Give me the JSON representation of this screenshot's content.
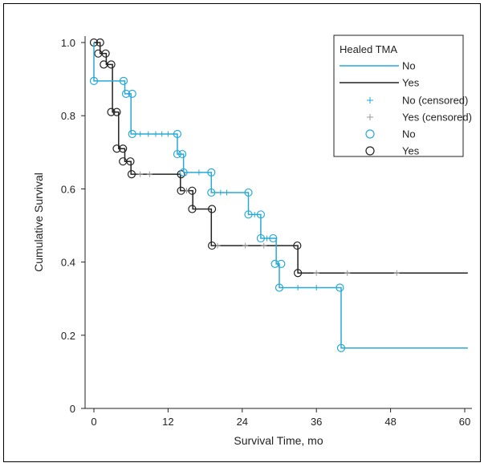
{
  "chart_data": {
    "type": "line",
    "subtype": "kaplan-meier step",
    "xlabel": "Survival Time, mo",
    "ylabel": "Cumulative Survival",
    "xlim": [
      0,
      60
    ],
    "ylim": [
      0,
      1.0
    ],
    "xticks": [
      0,
      12,
      24,
      36,
      48,
      60
    ],
    "yticks": [
      0,
      0.2,
      0.4,
      0.6,
      0.8,
      1.0
    ],
    "grid": false,
    "legend": {
      "title": "Healed TMA",
      "placement": "top-right",
      "entries": [
        {
          "label": "No",
          "kind": "line",
          "series": "No"
        },
        {
          "label": "Yes",
          "kind": "line",
          "series": "Yes"
        },
        {
          "label": "No (censored)",
          "kind": "censor",
          "series": "No"
        },
        {
          "label": "Yes (censored)",
          "kind": "censor",
          "series": "Yes"
        },
        {
          "label": "No",
          "kind": "event",
          "series": "No"
        },
        {
          "label": "Yes",
          "kind": "event",
          "series": "Yes"
        }
      ]
    },
    "series": [
      {
        "name": "No",
        "color": "#29a9d6",
        "steps": [
          [
            0,
            1.0
          ],
          [
            0,
            0.895
          ],
          [
            5,
            0.86
          ],
          [
            6,
            0.75
          ],
          [
            13.5,
            0.695
          ],
          [
            14.5,
            0.645
          ],
          [
            19,
            0.59
          ],
          [
            25,
            0.53
          ],
          [
            27,
            0.465
          ],
          [
            29.5,
            0.395
          ],
          [
            30,
            0.33
          ],
          [
            40,
            0.165
          ],
          [
            60.5,
            0.165
          ]
        ],
        "events": [
          [
            0,
            0.895
          ],
          [
            4.8,
            0.895
          ],
          [
            5.2,
            0.86
          ],
          [
            6.2,
            0.86
          ],
          [
            6.2,
            0.75
          ],
          [
            13.5,
            0.75
          ],
          [
            13.5,
            0.695
          ],
          [
            14.3,
            0.695
          ],
          [
            14.5,
            0.645
          ],
          [
            19,
            0.645
          ],
          [
            19,
            0.59
          ],
          [
            25,
            0.59
          ],
          [
            25,
            0.53
          ],
          [
            27,
            0.53
          ],
          [
            27,
            0.465
          ],
          [
            29,
            0.465
          ],
          [
            29.3,
            0.395
          ],
          [
            30.3,
            0.395
          ],
          [
            30,
            0.33
          ],
          [
            39.8,
            0.33
          ],
          [
            40,
            0.165
          ]
        ],
        "censored": [
          [
            7.5,
            0.75
          ],
          [
            8.8,
            0.75
          ],
          [
            10,
            0.75
          ],
          [
            11,
            0.75
          ],
          [
            12,
            0.75
          ],
          [
            17,
            0.645
          ],
          [
            20.5,
            0.59
          ],
          [
            21.5,
            0.59
          ],
          [
            26,
            0.53
          ],
          [
            28,
            0.465
          ],
          [
            33,
            0.33
          ],
          [
            36,
            0.33
          ]
        ]
      },
      {
        "name": "Yes",
        "color": "#222222",
        "steps": [
          [
            0,
            1.0
          ],
          [
            1,
            0.97
          ],
          [
            2,
            0.94
          ],
          [
            3,
            0.81
          ],
          [
            4,
            0.71
          ],
          [
            5,
            0.675
          ],
          [
            6,
            0.64
          ],
          [
            14,
            0.595
          ],
          [
            16,
            0.545
          ],
          [
            19,
            0.445
          ],
          [
            33,
            0.37
          ],
          [
            60.5,
            0.37
          ]
        ],
        "events": [
          [
            0,
            1.0
          ],
          [
            1,
            1.0
          ],
          [
            0.7,
            0.97
          ],
          [
            1.9,
            0.97
          ],
          [
            1.6,
            0.94
          ],
          [
            2.8,
            0.94
          ],
          [
            2.8,
            0.81
          ],
          [
            3.7,
            0.81
          ],
          [
            3.7,
            0.71
          ],
          [
            4.7,
            0.71
          ],
          [
            4.7,
            0.675
          ],
          [
            5.9,
            0.675
          ],
          [
            6.1,
            0.64
          ],
          [
            14.1,
            0.64
          ],
          [
            14.1,
            0.595
          ],
          [
            15.9,
            0.595
          ],
          [
            15.9,
            0.545
          ],
          [
            19.1,
            0.545
          ],
          [
            19.1,
            0.445
          ],
          [
            32.9,
            0.445
          ],
          [
            33,
            0.37
          ]
        ],
        "censored": [
          [
            7.5,
            0.64
          ],
          [
            9,
            0.64
          ],
          [
            15,
            0.595
          ],
          [
            20,
            0.445
          ],
          [
            24.5,
            0.445
          ],
          [
            27.5,
            0.445
          ],
          [
            36,
            0.37
          ],
          [
            41,
            0.37
          ],
          [
            49,
            0.37
          ]
        ]
      }
    ]
  }
}
